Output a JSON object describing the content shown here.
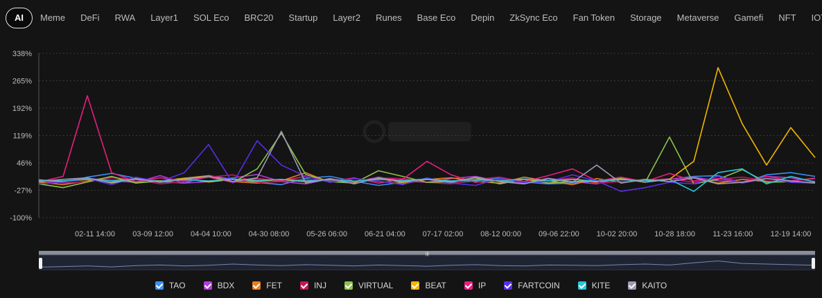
{
  "tabs": [
    {
      "label": "AI",
      "active": true
    },
    {
      "label": "Meme"
    },
    {
      "label": "DeFi"
    },
    {
      "label": "RWA"
    },
    {
      "label": "Layer1"
    },
    {
      "label": "SOL Eco"
    },
    {
      "label": "BRC20"
    },
    {
      "label": "Startup"
    },
    {
      "label": "Layer2"
    },
    {
      "label": "Runes"
    },
    {
      "label": "Base Eco"
    },
    {
      "label": "Depin"
    },
    {
      "label": "ZkSync Eco"
    },
    {
      "label": "Fan Token"
    },
    {
      "label": "Storage"
    },
    {
      "label": "Metaverse"
    },
    {
      "label": "Gamefi"
    },
    {
      "label": "NFT"
    },
    {
      "label": "IOT"
    }
  ],
  "chart_data": {
    "type": "line",
    "y_ticks": [
      "338%",
      "265%",
      "192%",
      "119%",
      "46%",
      "-27%",
      "-100%"
    ],
    "ylim": [
      -100,
      338
    ],
    "x_ticks": [
      "02-11 14:00",
      "03-09 12:00",
      "04-04 10:00",
      "04-30 08:00",
      "05-26 06:00",
      "06-21 04:00",
      "07-17 02:00",
      "08-12 00:00",
      "09-06 22:00",
      "10-02 20:00",
      "10-28 18:00",
      "11-23 16:00",
      "12-19 14:00"
    ],
    "x": [
      0,
      10,
      20,
      30,
      40,
      50,
      60,
      70,
      80,
      90,
      100,
      110,
      120,
      130,
      140,
      150,
      160,
      170,
      180,
      190,
      200,
      210,
      220,
      230,
      240,
      250,
      260,
      270,
      280,
      290,
      300,
      310,
      320
    ],
    "series": [
      {
        "name": "TAO",
        "color": "#3b8ff5",
        "values": [
          0,
          -5,
          8,
          18,
          5,
          -4,
          -8,
          12,
          2,
          -6,
          -12,
          5,
          10,
          -3,
          -14,
          -6,
          3,
          -8,
          -2,
          6,
          -5,
          -10,
          -8,
          -3,
          5,
          -6,
          2,
          10,
          12,
          -8,
          14,
          20,
          10
        ]
      },
      {
        "name": "BDX",
        "color": "#b23bdc",
        "values": [
          -8,
          -3,
          5,
          -2,
          -6,
          12,
          -8,
          -4,
          6,
          15,
          -4,
          -10,
          3,
          -5,
          8,
          -2,
          -6,
          4,
          10,
          -3,
          -8,
          5,
          -4,
          -10,
          6,
          -4,
          3,
          8,
          -2,
          -5,
          10,
          6,
          -4
        ]
      },
      {
        "name": "FET",
        "color": "#e87d1e",
        "values": [
          -5,
          -12,
          -2,
          8,
          -6,
          -2,
          5,
          12,
          -4,
          -8,
          -2,
          20,
          -6,
          4,
          -3,
          -10,
          2,
          6,
          -4,
          -8,
          8,
          -2,
          -12,
          4,
          -6,
          2,
          -4,
          6,
          -8,
          2,
          -4,
          -2,
          5
        ]
      },
      {
        "name": "INJ",
        "color": "#c2185b",
        "values": [
          2,
          -8,
          -4,
          6,
          2,
          -10,
          -4,
          8,
          14,
          -6,
          -4,
          2,
          -2,
          -8,
          6,
          4,
          -6,
          -10,
          2,
          8,
          -4,
          -2,
          6,
          -8,
          -4,
          -2,
          4,
          -6,
          2,
          8,
          -2,
          -4,
          -6
        ]
      },
      {
        "name": "VIRTUAL",
        "color": "#8bc34a",
        "values": [
          -10,
          -20,
          -5,
          10,
          -8,
          -2,
          5,
          10,
          -6,
          30,
          125,
          15,
          -4,
          -8,
          25,
          10,
          -6,
          -4,
          6,
          -10,
          2,
          -8,
          -4,
          -2,
          4,
          -6,
          115,
          -10,
          2,
          28,
          -6,
          -4,
          -8
        ]
      },
      {
        "name": "BEAT",
        "color": "#f2b500",
        "values": [
          0,
          -4,
          2,
          -6,
          3,
          -2,
          4,
          -5,
          2,
          -3,
          1,
          -4,
          2,
          -3,
          4,
          -6,
          2,
          -3,
          1,
          -2,
          3,
          -4,
          2,
          -5,
          3,
          -4,
          2,
          50,
          300,
          150,
          40,
          140,
          60
        ]
      },
      {
        "name": "IP",
        "color": "#e91e80",
        "values": [
          -5,
          10,
          225,
          20,
          -4,
          6,
          -2,
          8,
          -6,
          4,
          -2,
          10,
          -4,
          6,
          -8,
          2,
          50,
          14,
          -6,
          2,
          -4,
          12,
          30,
          -2,
          8,
          -4,
          18,
          -2,
          4,
          -6,
          10,
          -2,
          4
        ]
      },
      {
        "name": "FARTCOIN",
        "color": "#5a2ee8",
        "values": [
          -10,
          -6,
          4,
          -12,
          8,
          -4,
          20,
          95,
          -8,
          105,
          40,
          10,
          -6,
          4,
          -2,
          -12,
          6,
          -8,
          -14,
          4,
          -6,
          -4,
          14,
          -2,
          -30,
          -20,
          -6,
          -10,
          10,
          -8,
          5,
          -6,
          -8
        ]
      },
      {
        "name": "KITE",
        "color": "#26c6da",
        "values": [
          0,
          -2,
          3,
          -1,
          2,
          -3,
          1,
          -2,
          3,
          -1,
          2,
          -2,
          1,
          -3,
          2,
          -1,
          3,
          -2,
          1,
          -2,
          3,
          -1,
          2,
          -3,
          1,
          -2,
          2,
          -30,
          20,
          30,
          -10,
          10,
          -5
        ]
      },
      {
        "name": "KAITO",
        "color": "#9a9ab5",
        "values": [
          -4,
          2,
          6,
          -8,
          4,
          -6,
          2,
          10,
          -4,
          6,
          130,
          -8,
          4,
          -10,
          6,
          -4,
          2,
          -6,
          8,
          -4,
          -10,
          4,
          -6,
          40,
          -8,
          2,
          -4,
          6,
          -10,
          -6,
          4,
          -2,
          -8
        ]
      }
    ],
    "overview": [
      20,
      22,
      24,
      21,
      25,
      27,
      24,
      26,
      30,
      27,
      25,
      28,
      26,
      24,
      27,
      25,
      23,
      26,
      28,
      25,
      24,
      27,
      26,
      25,
      28,
      30,
      27,
      34,
      40,
      32,
      30,
      28,
      26
    ]
  }
}
